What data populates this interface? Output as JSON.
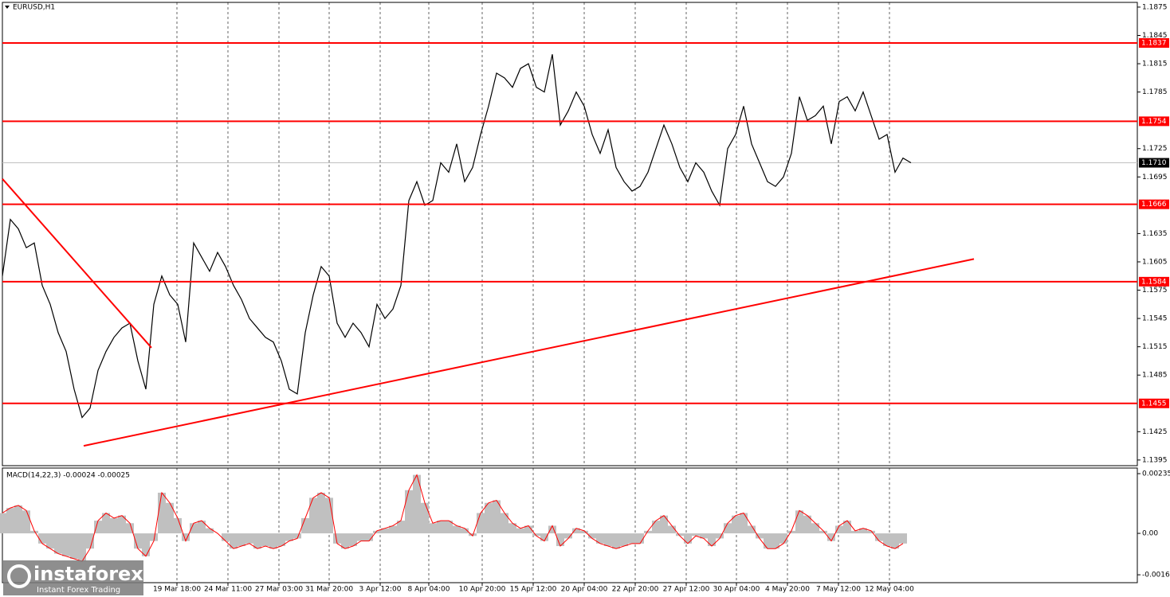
{
  "chart_data": [
    {
      "type": "line",
      "title": "EURUSD,H1",
      "xlim": [
        0,
        142.4
      ],
      "xticks": [
        {
          "value": 21.9,
          "label": "19 Mar 18:00"
        },
        {
          "value": 28.3,
          "label": "24 Mar 11:00"
        },
        {
          "value": 34.7,
          "label": "27 Mar 03:00"
        },
        {
          "value": 41,
          "label": "31 Mar 20:00"
        },
        {
          "value": 47.4,
          "label": "3 Apr 12:00"
        },
        {
          "value": 53.5,
          "label": "8 Apr 04:00"
        },
        {
          "value": 60.2,
          "label": "10 Apr 20:00"
        },
        {
          "value": 66.6,
          "label": "15 Apr 12:00"
        },
        {
          "value": 73,
          "label": "20 Apr 04:00"
        },
        {
          "value": 79.4,
          "label": "22 Apr 20:00"
        },
        {
          "value": 85.8,
          "label": "27 Apr 12:00"
        },
        {
          "value": 92.1,
          "label": "30 Apr 04:00"
        },
        {
          "value": 98.5,
          "label": "4 May 20:00"
        },
        {
          "value": 104.9,
          "label": "7 May 12:00"
        },
        {
          "value": 111.3,
          "label": "12 May 04:00"
        }
      ],
      "ylim": [
        1.1389,
        1.188
      ],
      "yticks": [
        1.1875,
        1.1845,
        1.1815,
        1.1785,
        1.1725,
        1.1695,
        1.1635,
        1.1605,
        1.1575,
        1.1545,
        1.1515,
        1.1485,
        1.1425,
        1.1395
      ],
      "grid": true,
      "series": [
        {
          "color": "#000000",
          "values": [
            1.159,
            1.165,
            1.164,
            1.162,
            1.1625,
            1.158,
            1.156,
            1.153,
            1.151,
            1.147,
            1.144,
            1.145,
            1.149,
            1.151,
            1.1525,
            1.1535,
            1.154,
            1.15,
            1.147,
            1.156,
            1.159,
            1.157,
            1.156,
            1.152,
            1.1625,
            1.161,
            1.1595,
            1.1615,
            1.16,
            1.158,
            1.1565,
            1.1545,
            1.1535,
            1.1525,
            1.152,
            1.15,
            1.147,
            1.1465,
            1.153,
            1.157,
            1.16,
            1.159,
            1.154,
            1.1525,
            1.154,
            1.153,
            1.1515,
            1.156,
            1.1545,
            1.1555,
            1.158,
            1.167,
            1.169,
            1.1665,
            1.167,
            1.171,
            1.17,
            1.173,
            1.169,
            1.1705,
            1.174,
            1.177,
            1.1805,
            1.18,
            1.179,
            1.181,
            1.1815,
            1.179,
            1.1785,
            1.1825,
            1.175,
            1.1765,
            1.1785,
            1.177,
            1.174,
            1.172,
            1.1745,
            1.1705,
            1.169,
            1.168,
            1.1685,
            1.17,
            1.1725,
            1.175,
            1.173,
            1.1705,
            1.169,
            1.171,
            1.17,
            1.168,
            1.1665,
            1.1725,
            1.174,
            1.177,
            1.173,
            1.171,
            1.169,
            1.1685,
            1.1695,
            1.172,
            1.178,
            1.1755,
            1.176,
            1.177,
            1.173,
            1.1775,
            1.178,
            1.1765,
            1.1785,
            1.176,
            1.1735,
            1.174,
            1.17,
            1.1715,
            1.171
          ]
        }
      ],
      "levels": {
        "color": "#ff0000",
        "values": [
          1.1837,
          1.1754,
          1.1666,
          1.1584,
          1.1455
        ]
      },
      "trendlines": [
        {
          "color": "#ff0000",
          "x": [
            0,
            18.7
          ],
          "values": [
            1.1693,
            1.1514
          ]
        },
        {
          "color": "#ff0000",
          "x": [
            10.2,
            121.9
          ],
          "values": [
            1.141,
            1.1608
          ]
        }
      ],
      "last_price": {
        "value": 1.171,
        "label": "1.1710"
      }
    },
    {
      "type": "bar",
      "title": "MACD(14,22,3) -0.00024 -0.00025",
      "ylim": [
        -0.00194,
        0.00257
      ],
      "yticks": [
        0.00235,
        {
          "value": 0,
          "label": "0.00"
        },
        -0.00163
      ],
      "color": "#c0c0c0",
      "line_color": "#ff0000",
      "values": [
        0.0008,
        0.001,
        0.0011,
        0.0009,
        0.0001,
        -0.0004,
        -0.0006,
        -0.0008,
        -0.0009,
        -0.001,
        -0.0011,
        -0.0006,
        0.0005,
        0.0008,
        0.0006,
        0.0007,
        0.0004,
        -0.0006,
        -0.0009,
        -0.0003,
        0.0016,
        0.0012,
        0.0006,
        -0.0003,
        0.0004,
        0.0005,
        0.0002,
        0,
        -0.0003,
        -0.0006,
        -0.0005,
        -0.0004,
        -0.0006,
        -0.0005,
        -0.0006,
        -0.0005,
        -0.0003,
        -0.0002,
        0.0006,
        0.0014,
        0.0016,
        0.0014,
        -0.0004,
        -0.0006,
        -0.0005,
        -0.0003,
        -0.0003,
        0.0001,
        0.0002,
        0.0003,
        0.0005,
        0.0017,
        0.0023,
        0.0012,
        0.0004,
        0.0005,
        0.0005,
        0.0003,
        0.0002,
        -0.0001,
        0.0008,
        0.0012,
        0.0013,
        0.0008,
        0.0004,
        0.0002,
        0.0003,
        -0.0001,
        -0.0003,
        0.0003,
        -0.0005,
        -0.0002,
        0.0002,
        0.0001,
        -0.0002,
        -0.0004,
        -0.0005,
        -0.0006,
        -0.0005,
        -0.0004,
        -0.0004,
        0.0001,
        0.0005,
        0.0007,
        0.0003,
        -0.0001,
        -0.0004,
        -0.0001,
        -0.0002,
        -0.0005,
        -0.0002,
        0.0004,
        0.0007,
        0.0008,
        0.0003,
        -0.0002,
        -0.0006,
        -0.0006,
        -0.0004,
        0.0001,
        0.0009,
        0.0007,
        0.0004,
        0.0001,
        -0.0003,
        0.0003,
        0.0005,
        0.0001,
        0.0002,
        0.0001,
        -0.0003,
        -0.0005,
        -0.0006,
        -0.0004
      ]
    }
  ],
  "branding": {
    "name": "instaforex",
    "tagline": "Instant Forex Trading"
  }
}
